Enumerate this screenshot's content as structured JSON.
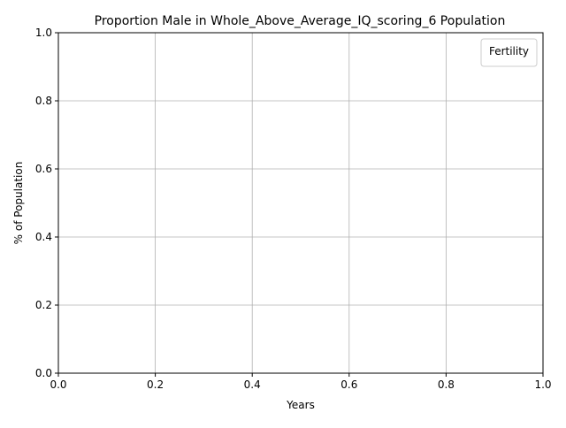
{
  "chart_data": {
    "type": "line",
    "title": "Proportion Male in Whole_Above_Average_IQ_scoring_6 Population",
    "xlabel": "Years",
    "ylabel": "% of Population",
    "xlim": [
      0.0,
      1.0
    ],
    "ylim": [
      0.0,
      1.0
    ],
    "x_ticks": [
      "0.0",
      "0.2",
      "0.4",
      "0.6",
      "0.8",
      "1.0"
    ],
    "y_ticks": [
      "0.0",
      "0.2",
      "0.4",
      "0.6",
      "0.8",
      "1.0"
    ],
    "grid": true,
    "legend": {
      "title": "Fertility",
      "placement": "top-right",
      "entries": []
    },
    "series": []
  },
  "colors": {
    "grid": "#b0b0b0",
    "axes": "#000000",
    "background": "#ffffff"
  }
}
